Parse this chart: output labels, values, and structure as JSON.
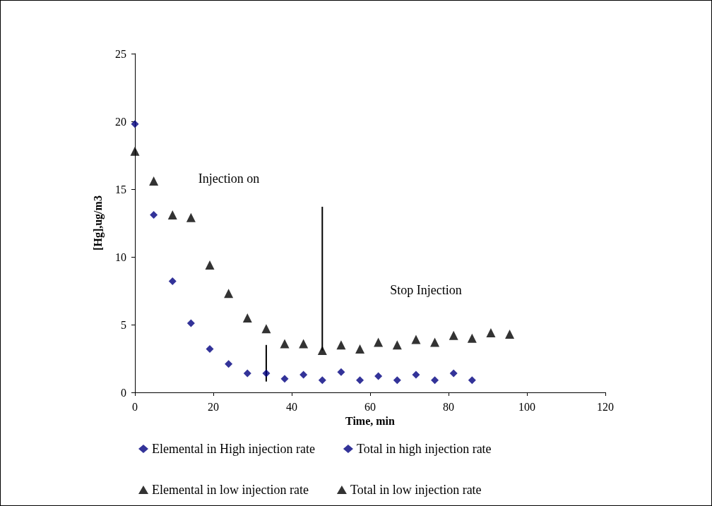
{
  "chart_data": {
    "type": "scatter",
    "xlabel": "Time, min",
    "ylabel": "[Hg],ug/m3",
    "xlim": [
      0,
      120
    ],
    "xticks": [
      0,
      20,
      40,
      60,
      80,
      100,
      120
    ],
    "ylim": [
      0,
      25
    ],
    "yticks": [
      0,
      5,
      10,
      15,
      20,
      25
    ],
    "grid": false,
    "legend": "bottom",
    "annotations": [
      "Injection on",
      "Stop Injection"
    ],
    "series": [
      {
        "name": "Elemental in High injection rate",
        "color": "#000080",
        "marker": "diamond",
        "x": [
          4.8,
          14.3,
          23.9,
          33.5,
          43.0,
          52.6,
          62.1,
          71.7,
          81.3
        ],
        "values": [
          13.1,
          5.1,
          2.1,
          1.4,
          1.3,
          1.5,
          1.2,
          1.3,
          1.4
        ]
      },
      {
        "name": "Total in high injection rate",
        "color": "#000080",
        "marker": "diamond",
        "x": [
          0,
          9.6,
          19.1,
          28.7,
          38.2,
          47.8,
          57.4,
          66.9,
          76.5,
          86.0
        ],
        "values": [
          19.8,
          8.2,
          3.2,
          1.4,
          1.0,
          0.9,
          0.9,
          0.9,
          0.9,
          0.9
        ]
      },
      {
        "name": "Elemental in low injection rate",
        "color": "#000000",
        "marker": "triangle",
        "x": [
          0,
          9.6,
          19.1,
          28.7,
          38.2,
          47.8,
          57.4,
          66.9,
          76.5,
          86.0,
          95.6
        ],
        "values": [
          17.8,
          13.1,
          9.4,
          5.5,
          3.6,
          3.1,
          3.2,
          3.5,
          3.7,
          4.0,
          4.3
        ]
      },
      {
        "name": "Total in low injection rate",
        "color": "#000000",
        "marker": "triangle",
        "x": [
          4.8,
          14.3,
          23.9,
          33.5,
          43.0,
          52.6,
          62.1,
          71.7,
          81.3,
          90.8
        ],
        "values": [
          15.6,
          12.9,
          7.3,
          4.7,
          3.6,
          3.5,
          3.7,
          3.9,
          4.2,
          4.4
        ]
      },
      {
        "type": "line",
        "color": "#000000",
        "marker": "none",
        "line_style": "solid",
        "x": [
          33.5,
          33.5
        ],
        "values": [
          0.8,
          3.5
        ]
      },
      {
        "type": "line",
        "color": "#000000",
        "marker": "none",
        "line_style": "solid",
        "x": [
          47.8,
          47.8
        ],
        "values": [
          3.1,
          13.7
        ]
      }
    ]
  }
}
